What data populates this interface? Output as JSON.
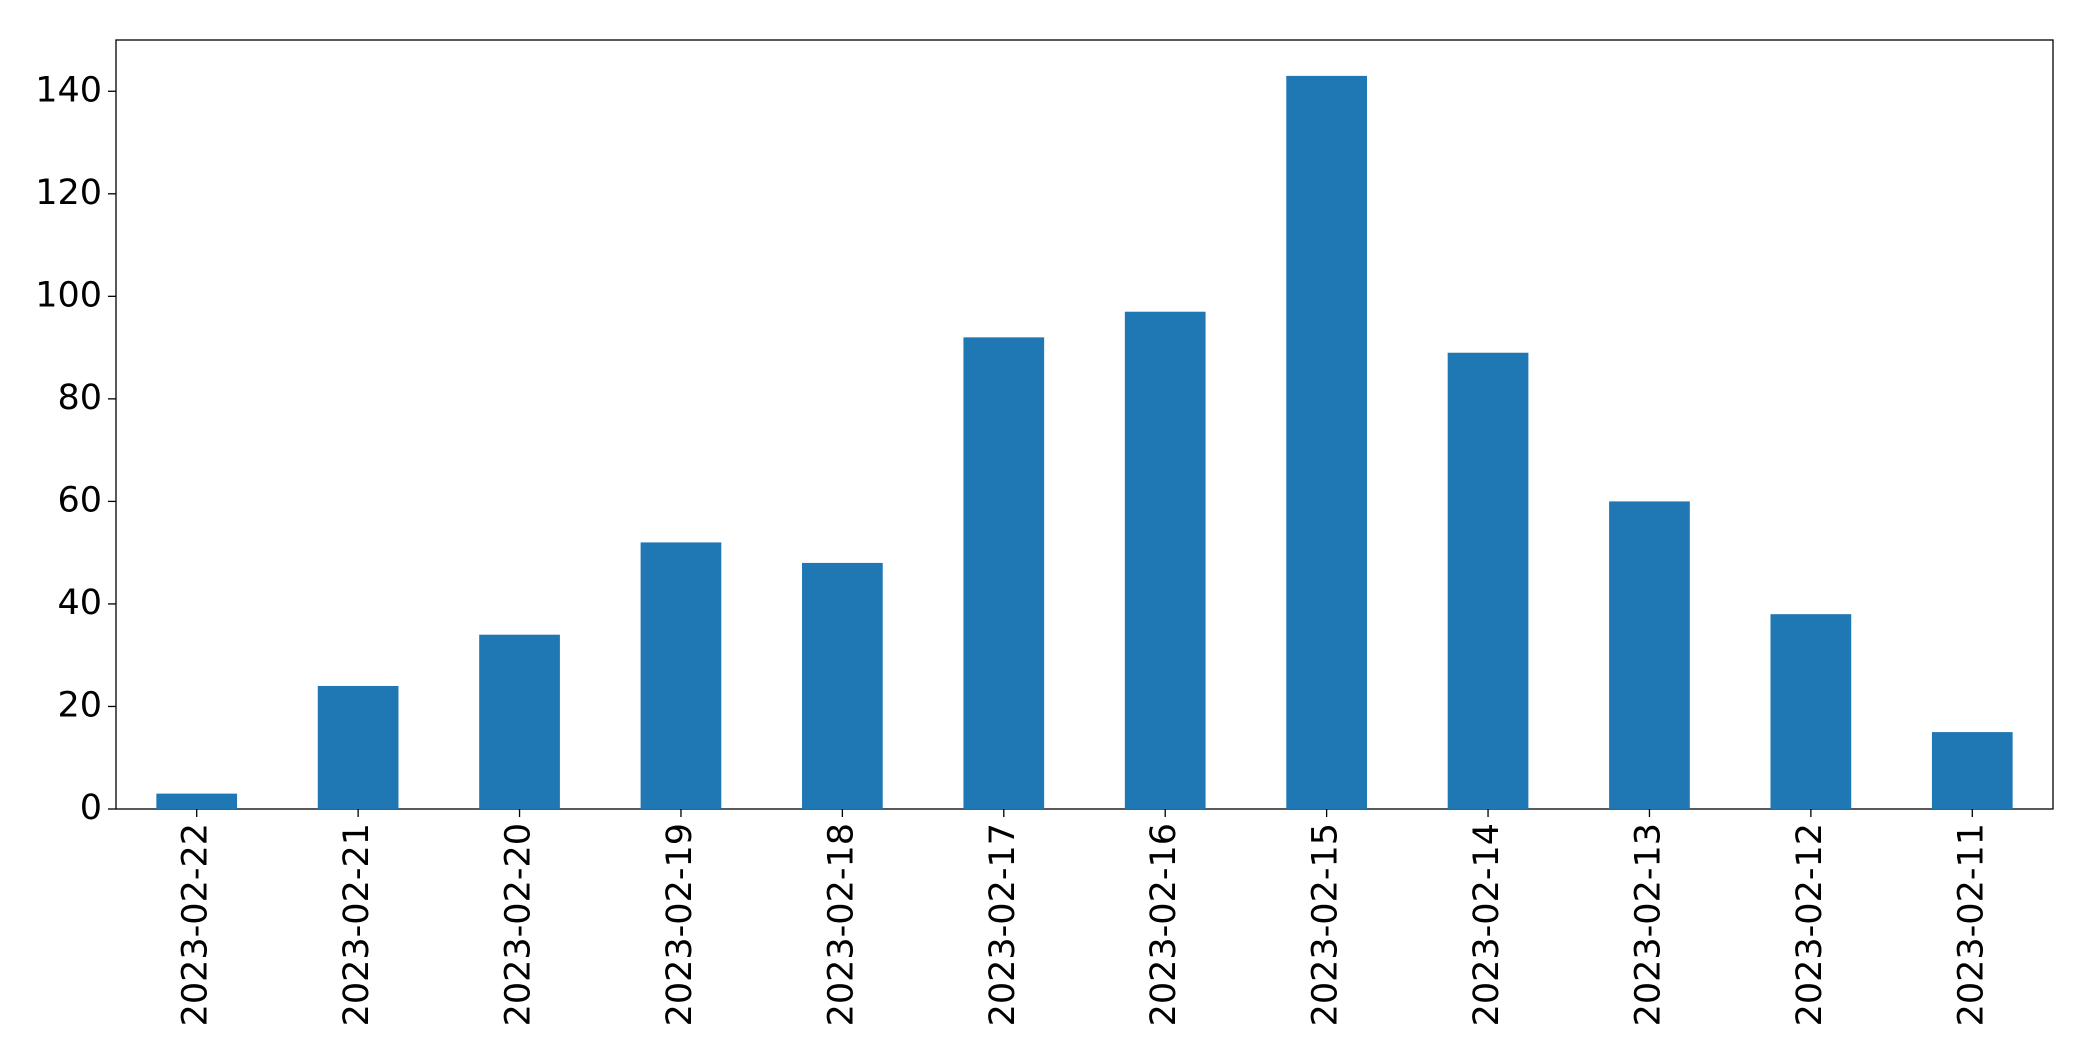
{
  "chart_data": {
    "type": "bar",
    "categories": [
      "2023-02-22",
      "2023-02-21",
      "2023-02-20",
      "2023-02-19",
      "2023-02-18",
      "2023-02-17",
      "2023-02-16",
      "2023-02-15",
      "2023-02-14",
      "2023-02-13",
      "2023-02-12",
      "2023-02-11"
    ],
    "values": [
      3,
      24,
      34,
      52,
      48,
      92,
      97,
      143,
      89,
      60,
      38,
      15
    ],
    "color": "#1f77b4",
    "ylim": [
      0,
      150
    ],
    "yticks": [
      0,
      20,
      40,
      60,
      80,
      100,
      120,
      140
    ],
    "grid": false
  }
}
